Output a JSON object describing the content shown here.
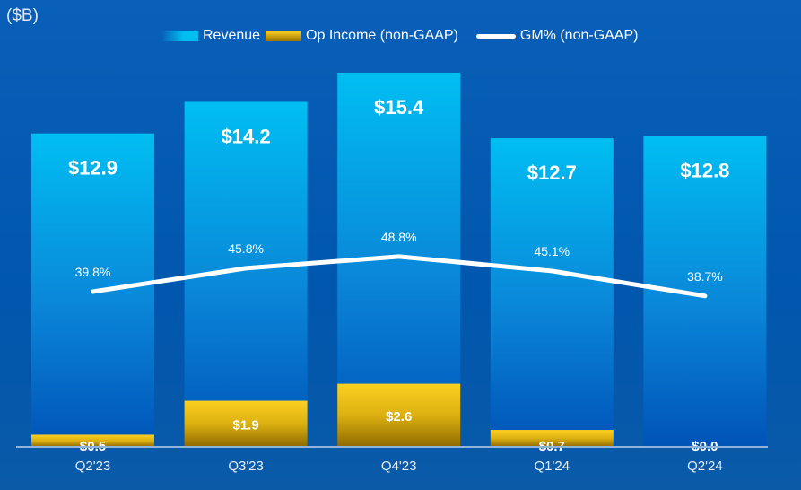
{
  "unit_label": "($B)",
  "legend": [
    {
      "label": "Revenue",
      "color": "#00bff0"
    },
    {
      "label": "Op Income (non-GAAP)",
      "color": "#f5c518"
    },
    {
      "label": "GM% (non-GAAP)",
      "color": "#ffffff"
    }
  ],
  "chart_data": {
    "type": "bar",
    "categories": [
      "Q2'23",
      "Q3'23",
      "Q4'23",
      "Q1'24",
      "Q2'24"
    ],
    "series": [
      {
        "name": "Revenue",
        "type": "bar",
        "values": [
          12.9,
          14.2,
          15.4,
          12.7,
          12.8
        ],
        "labels": [
          "$12.9",
          "$14.2",
          "$15.4",
          "$12.7",
          "$12.8"
        ]
      },
      {
        "name": "Op Income (non-GAAP)",
        "type": "bar",
        "values": [
          0.5,
          1.9,
          2.6,
          0.7,
          0.0
        ],
        "labels": [
          "$0.5",
          "$1.9",
          "$2.6",
          "$0.7",
          "$0.0"
        ]
      },
      {
        "name": "GM% (non-GAAP)",
        "type": "line",
        "values": [
          39.8,
          45.8,
          48.8,
          45.1,
          38.7
        ],
        "labels": [
          "39.8%",
          "45.8%",
          "48.8%",
          "45.1%",
          "38.7%"
        ]
      }
    ],
    "ylabel": "($B)",
    "grid": false,
    "legend_position": "top"
  }
}
